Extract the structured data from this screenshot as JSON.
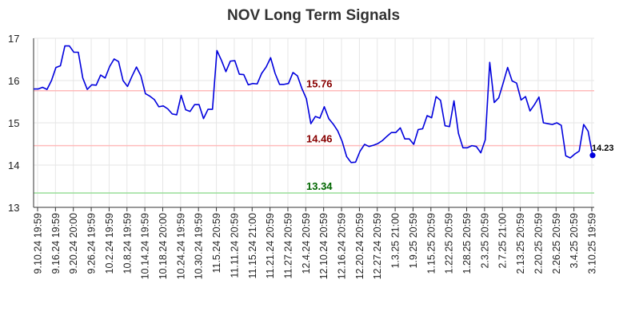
{
  "chart_data": {
    "type": "line",
    "title": "NOV Long Term Signals",
    "xlabel": "",
    "ylabel": "",
    "ylim": [
      13,
      17
    ],
    "yticks": [
      "13",
      "14",
      "15",
      "16",
      "17"
    ],
    "grid": true,
    "colors": {
      "line": "#0000dd",
      "upper_line": "#ffbbbb",
      "mid_line": "#ffbbbb",
      "lower_line": "#99dd99",
      "upper_label": "#880000",
      "mid_label": "#880000",
      "lower_label": "#006600",
      "grid": "#e6e6e6"
    },
    "reference_lines": [
      {
        "label": "15.76",
        "value": 15.76,
        "role": "upper"
      },
      {
        "label": "14.46",
        "value": 14.46,
        "role": "mid"
      },
      {
        "label": "13.34",
        "value": 13.34,
        "role": "lower"
      }
    ],
    "last_value_label": "14.23",
    "x_tick_labels": [
      "9.10.24 19:59",
      "9.16.24 19:59",
      "9.20.24 20:00",
      "9.26.24 19:59",
      "10.2.24 19:59",
      "10.8.24 19:59",
      "10.14.24 19:59",
      "10.18.24 20:00",
      "10.24.24 19:59",
      "10.30.24 19:59",
      "11.5.24 20:59",
      "11.11.24 20:59",
      "11.15.24 21:00",
      "11.21.24 20:59",
      "11.27.24 20:59",
      "12.4.24 20:59",
      "12.10.24 20:59",
      "12.16.24 20:59",
      "12.20.24 20:59",
      "12.27.24 20:59",
      "1.3.25 21:00",
      "1.9.25 20:59",
      "1.15.25 20:59",
      "1.22.25 20:59",
      "1.28.25 20:59",
      "2.3.25 20:59",
      "2.7.25 21:00",
      "2.13.25 20:59",
      "2.20.25 20:59",
      "2.26.25 20:59",
      "3.4.25 20:59",
      "3.10.25 19:59"
    ],
    "series": [
      {
        "values": [
          15.8,
          15.8,
          15.84,
          15.79,
          16.0,
          16.31,
          16.35,
          16.82,
          16.82,
          16.67,
          16.67,
          16.06,
          15.79,
          15.9,
          15.89,
          16.13,
          16.06,
          16.33,
          16.51,
          16.45,
          16.0,
          15.86,
          16.1,
          16.32,
          16.11,
          15.69,
          15.63,
          15.55,
          15.38,
          15.4,
          15.33,
          15.21,
          15.19,
          15.65,
          15.31,
          15.27,
          15.43,
          15.43,
          15.1,
          15.32,
          15.32,
          16.71,
          16.48,
          16.21,
          16.46,
          16.47,
          16.15,
          16.14,
          15.9,
          15.93,
          15.92,
          16.17,
          16.32,
          16.54,
          16.17,
          15.91,
          15.91,
          15.93,
          16.19,
          16.11,
          15.81,
          15.57,
          14.98,
          15.15,
          15.11,
          15.38,
          15.1,
          14.97,
          14.81,
          14.56,
          14.2,
          14.06,
          14.07,
          14.33,
          14.49,
          14.44,
          14.47,
          14.51,
          14.58,
          14.68,
          14.77,
          14.77,
          14.88,
          14.62,
          14.62,
          14.49,
          14.84,
          14.86,
          15.17,
          15.12,
          15.62,
          15.53,
          14.93,
          14.91,
          15.52,
          14.75,
          14.41,
          14.41,
          14.46,
          14.44,
          14.29,
          14.6,
          16.43,
          15.48,
          15.59,
          15.94,
          16.31,
          15.99,
          15.94,
          15.54,
          15.62,
          15.28,
          15.43,
          15.61,
          15.0,
          14.98,
          14.96,
          15.0,
          14.94,
          14.22,
          14.17,
          14.26,
          14.33,
          14.96,
          14.8,
          14.23
        ]
      }
    ]
  }
}
